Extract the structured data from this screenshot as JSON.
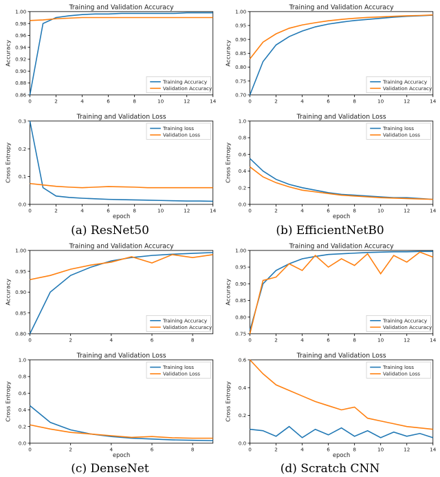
{
  "colors": {
    "train": "#1f77b4",
    "val": "#ff7f0e",
    "axis": "#000000",
    "background": "#ffffff",
    "legend_border": "#cccccc"
  },
  "typography": {
    "caption_fontsize": 17,
    "title_fontsize": 9,
    "tick_fontsize": 7,
    "legend_fontsize": 7,
    "axis_label_fontsize": 8,
    "caption_family": "serif",
    "chart_family": "sans-serif"
  },
  "line_width": 1.5,
  "panels": [
    {
      "id": "resnet50",
      "caption": "(a) ResNet50",
      "accuracy": {
        "title": "Training and Validation Accuracy",
        "ylabel": "Accuracy",
        "xlabel": "",
        "xlim": [
          0,
          14
        ],
        "xtick_step": 2,
        "ylim": [
          0.86,
          1.0
        ],
        "ytick_step": 0.02,
        "legend_pos": "lower-right",
        "legend": [
          "Training Accuracy",
          "Validation Accuracy"
        ],
        "x": [
          0,
          1,
          2,
          3,
          4,
          5,
          6,
          7,
          8,
          9,
          10,
          11,
          12,
          13,
          14
        ],
        "train": [
          0.86,
          0.98,
          0.99,
          0.993,
          0.995,
          0.996,
          0.996,
          0.997,
          0.997,
          0.997,
          0.997,
          0.997,
          0.998,
          0.998,
          0.998
        ],
        "val": [
          0.985,
          0.986,
          0.988,
          0.989,
          0.99,
          0.99,
          0.99,
          0.99,
          0.99,
          0.99,
          0.99,
          0.99,
          0.99,
          0.99,
          0.99
        ]
      },
      "loss": {
        "title": "Training and Validation Loss",
        "ylabel": "Cross Entropy",
        "xlabel": "epoch",
        "xlim": [
          0,
          14
        ],
        "xtick_step": 2,
        "ylim": [
          0.0,
          0.3
        ],
        "ytick_step": 0.1,
        "legend_pos": "upper-right",
        "legend": [
          "Training loss",
          "Validation Loss"
        ],
        "x": [
          0,
          1,
          2,
          3,
          4,
          5,
          6,
          7,
          8,
          9,
          10,
          11,
          12,
          13,
          14
        ],
        "train": [
          0.3,
          0.06,
          0.03,
          0.025,
          0.022,
          0.02,
          0.018,
          0.017,
          0.016,
          0.015,
          0.014,
          0.013,
          0.012,
          0.012,
          0.011
        ],
        "val": [
          0.075,
          0.07,
          0.065,
          0.062,
          0.06,
          0.062,
          0.064,
          0.063,
          0.062,
          0.06,
          0.06,
          0.06,
          0.06,
          0.06,
          0.06
        ]
      }
    },
    {
      "id": "efficientnetb0",
      "caption": "(b) EfficientNetB0",
      "accuracy": {
        "title": "Training and Validation Accuracy",
        "ylabel": "Accuracy",
        "xlabel": "",
        "xlim": [
          0,
          14
        ],
        "xtick_step": 2,
        "ylim": [
          0.7,
          1.0
        ],
        "ytick_step": 0.05,
        "legend_pos": "lower-right",
        "legend": [
          "Training Accuracy",
          "Validation Accuracy"
        ],
        "x": [
          0,
          1,
          2,
          3,
          4,
          5,
          6,
          7,
          8,
          9,
          10,
          11,
          12,
          13,
          14
        ],
        "train": [
          0.7,
          0.82,
          0.88,
          0.91,
          0.93,
          0.945,
          0.955,
          0.962,
          0.968,
          0.972,
          0.976,
          0.98,
          0.983,
          0.985,
          0.987
        ],
        "val": [
          0.83,
          0.89,
          0.92,
          0.94,
          0.952,
          0.96,
          0.967,
          0.972,
          0.976,
          0.979,
          0.981,
          0.983,
          0.985,
          0.986,
          0.988
        ]
      },
      "loss": {
        "title": "Training and Validation Loss",
        "ylabel": "Cross Entropy",
        "xlabel": "epoch",
        "xlim": [
          0,
          14
        ],
        "xtick_step": 2,
        "ylim": [
          0.0,
          1.0
        ],
        "ytick_step": 0.2,
        "legend_pos": "upper-right",
        "legend": [
          "Training loss",
          "Validation Loss"
        ],
        "x": [
          0,
          1,
          2,
          3,
          4,
          5,
          6,
          7,
          8,
          9,
          10,
          11,
          12,
          13,
          14
        ],
        "train": [
          0.55,
          0.4,
          0.3,
          0.24,
          0.2,
          0.17,
          0.14,
          0.12,
          0.11,
          0.1,
          0.09,
          0.08,
          0.08,
          0.07,
          0.06
        ],
        "val": [
          0.45,
          0.33,
          0.26,
          0.21,
          0.17,
          0.15,
          0.13,
          0.11,
          0.1,
          0.09,
          0.08,
          0.075,
          0.07,
          0.065,
          0.06
        ]
      }
    },
    {
      "id": "densenet",
      "caption": "(c) DenseNet",
      "accuracy": {
        "title": "Training and Validation Accuracy",
        "ylabel": "Accuracy",
        "xlabel": "",
        "xlim": [
          0,
          9
        ],
        "xtick_step": 2,
        "ylim": [
          0.8,
          1.0
        ],
        "ytick_step": 0.05,
        "legend_pos": "lower-right",
        "legend": [
          "Training Accuracy",
          "Validation Accuracy"
        ],
        "x": [
          0,
          1,
          2,
          3,
          4,
          5,
          6,
          7,
          8,
          9
        ],
        "train": [
          0.8,
          0.9,
          0.94,
          0.96,
          0.975,
          0.983,
          0.988,
          0.991,
          0.993,
          0.995
        ],
        "val": [
          0.93,
          0.94,
          0.955,
          0.965,
          0.972,
          0.985,
          0.97,
          0.99,
          0.983,
          0.99
        ]
      },
      "loss": {
        "title": "Training and Validation Loss",
        "ylabel": "Cross Entropy",
        "xlabel": "epoch",
        "xlim": [
          0,
          9
        ],
        "xtick_step": 2,
        "ylim": [
          0.0,
          1.0
        ],
        "ytick_step": 0.2,
        "legend_pos": "upper-right",
        "legend": [
          "Training loss",
          "Validation Loss"
        ],
        "x": [
          0,
          1,
          2,
          3,
          4,
          5,
          6,
          7,
          8,
          9
        ],
        "train": [
          0.45,
          0.25,
          0.16,
          0.11,
          0.08,
          0.06,
          0.05,
          0.04,
          0.035,
          0.03
        ],
        "val": [
          0.22,
          0.17,
          0.13,
          0.11,
          0.09,
          0.07,
          0.08,
          0.065,
          0.06,
          0.06
        ]
      }
    },
    {
      "id": "scratchcnn",
      "caption": "(d) Scratch CNN",
      "accuracy": {
        "title": "Training and Validation Accuracy",
        "ylabel": "Accuracy",
        "xlabel": "",
        "xlim": [
          0,
          14
        ],
        "xtick_step": 2,
        "ylim": [
          0.75,
          1.0
        ],
        "ytick_step": 0.05,
        "legend_pos": "lower-right",
        "legend": [
          "Training Accuracy",
          "Validation Accuracy"
        ],
        "x": [
          0,
          1,
          2,
          3,
          4,
          5,
          6,
          7,
          8,
          9,
          10,
          11,
          12,
          13,
          14
        ],
        "train": [
          0.76,
          0.9,
          0.94,
          0.96,
          0.975,
          0.982,
          0.988,
          0.99,
          0.992,
          0.994,
          0.995,
          0.996,
          0.996,
          0.997,
          0.997
        ],
        "val": [
          0.75,
          0.91,
          0.92,
          0.96,
          0.94,
          0.985,
          0.95,
          0.975,
          0.955,
          0.99,
          0.93,
          0.985,
          0.965,
          0.995,
          0.98
        ]
      },
      "loss": {
        "title": "Training and Validation Loss",
        "ylabel": "Cross Entropy",
        "xlabel": "epoch",
        "xlim": [
          0,
          14
        ],
        "xtick_step": 2,
        "ylim": [
          0.0,
          0.6
        ],
        "ytick_step": 0.2,
        "legend_pos": "upper-right",
        "legend": [
          "Training loss",
          "Validation Loss"
        ],
        "x": [
          0,
          1,
          2,
          3,
          4,
          5,
          6,
          7,
          8,
          9,
          10,
          11,
          12,
          13,
          14
        ],
        "train": [
          0.1,
          0.09,
          0.05,
          0.12,
          0.04,
          0.1,
          0.06,
          0.11,
          0.05,
          0.09,
          0.04,
          0.08,
          0.05,
          0.07,
          0.04
        ],
        "val": [
          0.6,
          0.5,
          0.42,
          0.38,
          0.34,
          0.3,
          0.27,
          0.24,
          0.26,
          0.18,
          0.16,
          0.14,
          0.12,
          0.11,
          0.1
        ]
      }
    }
  ]
}
